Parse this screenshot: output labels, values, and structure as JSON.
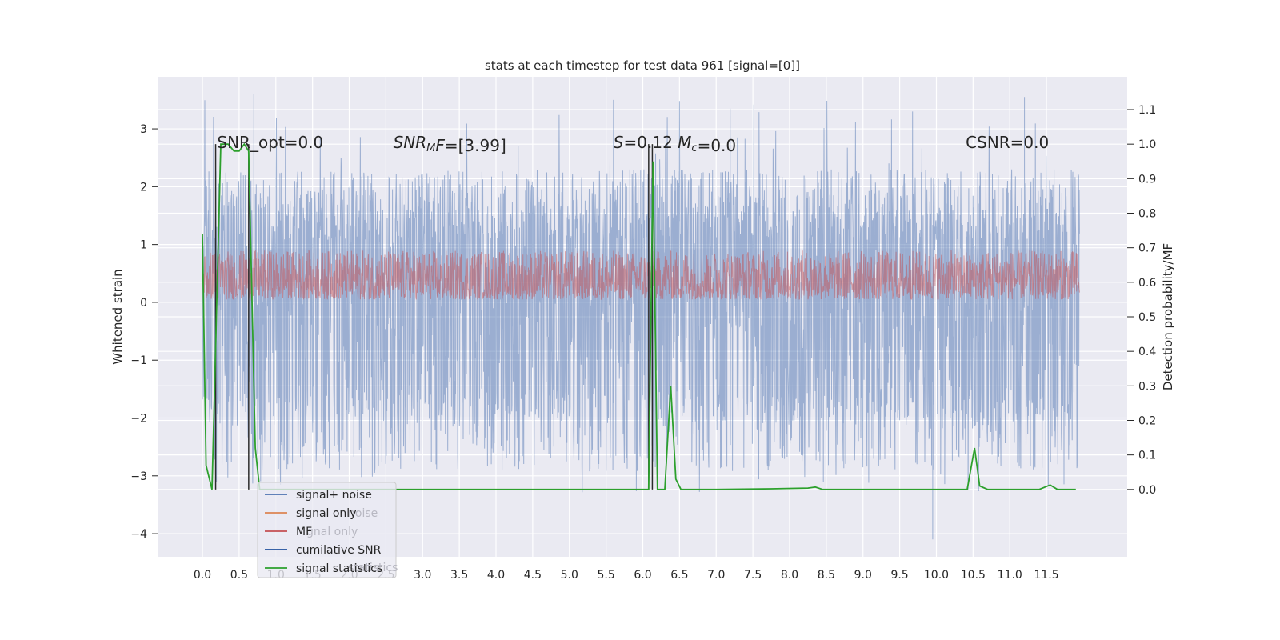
{
  "chart_data": {
    "type": "line",
    "title": "stats at each timestep for test data 961 [signal=[0]]",
    "ylabel_left": "Whitened strain",
    "ylabel_right": "Detection probability/MF",
    "x_ticks": [
      "0.0",
      "0.5",
      "1.0",
      "1.5",
      "2.0",
      "2.5",
      "3.0",
      "3.5",
      "4.0",
      "4.5",
      "5.0",
      "5.5",
      "6.0",
      "6.5",
      "7.0",
      "7.5",
      "8.0",
      "8.5",
      "9.0",
      "9.5",
      "10.0",
      "10.5",
      "11.0",
      "11.5"
    ],
    "y_left_ticks": [
      "3",
      "2",
      "1",
      "0",
      "−1",
      "−2",
      "−3",
      "−4"
    ],
    "y_right_ticks": [
      "1.1",
      "1.0",
      "0.9",
      "0.8",
      "0.7",
      "0.6",
      "0.5",
      "0.4",
      "0.3",
      "0.2",
      "0.1",
      "0.0"
    ],
    "xlim": [
      -0.6,
      12.6
    ],
    "ylim_left": [
      -4.4,
      3.9
    ],
    "ylim_right": [
      -0.195,
      1.195
    ],
    "grid": true,
    "legend_position": "lower-left",
    "legend": [
      {
        "label": "signal+ noise",
        "color": "#4c72b0"
      },
      {
        "label": "signal only",
        "color": "#dd8452"
      },
      {
        "label": "MF",
        "color": "#c44e52"
      },
      {
        "label": "cumilative SNR",
        "color": "#1f4e9c"
      },
      {
        "label": "signal statistics",
        "color": "#2ca02c"
      }
    ],
    "legend_ghost": [
      "noise",
      "gnal only",
      "statistics"
    ],
    "annotations": [
      {
        "text": "SNR_opt=0.0"
      },
      {
        "segments": [
          {
            "t": "SNR",
            "i": true
          },
          {
            "t": "M",
            "i": true,
            "sub": true
          },
          {
            "t": "F",
            "i": true
          },
          {
            "t": "=[3.99]",
            "i": false
          }
        ]
      },
      {
        "segments": [
          {
            "t": "S",
            "i": true
          },
          {
            "t": "=0.12   ",
            "i": false
          },
          {
            "t": "M",
            "i": true
          },
          {
            "t": "c",
            "i": true,
            "sub": true
          },
          {
            "t": "=0.0",
            "i": false
          }
        ]
      },
      {
        "text": "CSNR=0.0"
      }
    ],
    "series": [
      {
        "name": "signal+ noise",
        "color": "#4c72b0",
        "description": "dense noisy strain, roughly -3.3..3.6",
        "x_range": [
          0,
          11.95
        ],
        "band": [
          -2.0,
          1.6
        ],
        "extremes": [
          -4.1,
          3.6
        ]
      },
      {
        "name": "MF",
        "color": "#c44e52",
        "x_range": [
          0,
          11.95
        ],
        "band": [
          0.0,
          1.0
        ]
      },
      {
        "name": "signal statistics",
        "color": "#2ca02c",
        "points": [
          [
            0.0,
            0.74
          ],
          [
            0.05,
            0.07
          ],
          [
            0.13,
            0.0
          ],
          [
            0.25,
            1.0
          ],
          [
            0.35,
            1.0
          ],
          [
            0.43,
            0.98
          ],
          [
            0.5,
            0.98
          ],
          [
            0.57,
            1.0
          ],
          [
            0.63,
            0.98
          ],
          [
            0.72,
            0.12
          ],
          [
            0.78,
            0.0
          ],
          [
            6.08,
            0.0
          ],
          [
            6.14,
            0.95
          ],
          [
            6.2,
            0.0
          ],
          [
            6.3,
            0.0
          ],
          [
            6.38,
            0.3
          ],
          [
            6.45,
            0.03
          ],
          [
            6.52,
            0.0
          ],
          [
            7.0,
            0.0
          ],
          [
            7.75,
            0.002
          ],
          [
            8.25,
            0.004
          ],
          [
            8.35,
            0.007
          ],
          [
            8.45,
            0.0
          ],
          [
            10.42,
            0.0
          ],
          [
            10.52,
            0.12
          ],
          [
            10.59,
            0.01
          ],
          [
            10.7,
            0.0
          ],
          [
            11.4,
            0.0
          ],
          [
            11.55,
            0.013
          ],
          [
            11.65,
            0.0
          ],
          [
            11.9,
            0.0
          ]
        ]
      },
      {
        "name": "vertical markers",
        "color": "#2b2b2b",
        "x": [
          0.18,
          0.63,
          6.08,
          6.13
        ]
      }
    ]
  }
}
